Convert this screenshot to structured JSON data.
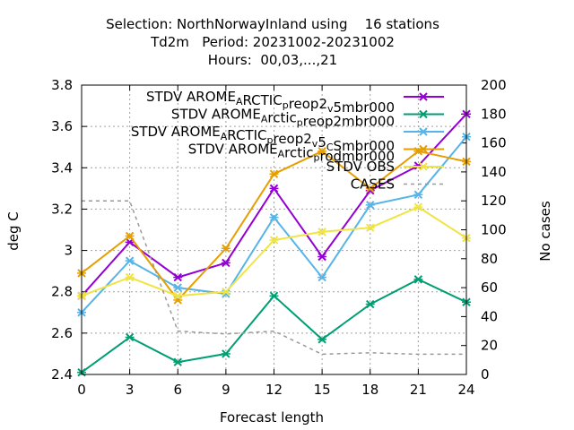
{
  "title_lines": [
    "Selection: NorthNorwayInland using    16 stations",
    "Td2m   Period: 20231002-20231002",
    "Hours:  00,03,...,21"
  ],
  "chart_data": {
    "type": "line",
    "xlabel": "Forecast length",
    "ylabel": "deg C",
    "y2label": "No cases",
    "x": [
      0,
      3,
      6,
      9,
      12,
      15,
      18,
      21,
      24
    ],
    "xlim": [
      0,
      24
    ],
    "ylim": [
      2.4,
      3.8
    ],
    "y2lim": [
      0,
      200
    ],
    "xticks": [
      "0",
      "3",
      "6",
      "9",
      "12",
      "15",
      "18",
      "21",
      "24"
    ],
    "yticks": [
      "2.4",
      "2.6",
      "2.8",
      "3",
      "3.2",
      "3.4",
      "3.6",
      "3.8"
    ],
    "y2ticks": [
      "0",
      "20",
      "40",
      "60",
      "80",
      "100",
      "120",
      "140",
      "160",
      "180",
      "200"
    ],
    "grid": true,
    "legend_position": "top-right",
    "series": [
      {
        "label": [
          [
            "t",
            "STDV AROME"
          ],
          [
            "sub",
            "A"
          ],
          [
            "t",
            "RCTIC"
          ],
          [
            "sub",
            "p"
          ],
          [
            "t",
            "reop2"
          ],
          [
            "sub",
            "v"
          ],
          [
            "t",
            "5mbr000"
          ]
        ],
        "color": "#9400d3",
        "marker": "x",
        "axis": "y1",
        "dashed": false,
        "values": [
          2.78,
          3.04,
          2.87,
          2.94,
          3.3,
          2.97,
          3.29,
          3.41,
          3.66
        ]
      },
      {
        "label": [
          [
            "t",
            "STDV AROME"
          ],
          [
            "sub",
            "A"
          ],
          [
            "t",
            "rctic"
          ],
          [
            "sub",
            "p"
          ],
          [
            "t",
            "reop2mbr000"
          ]
        ],
        "color": "#009e73",
        "marker": "x",
        "axis": "y1",
        "dashed": false,
        "values": [
          2.41,
          2.58,
          2.46,
          2.5,
          2.78,
          2.57,
          2.74,
          2.86,
          2.75
        ]
      },
      {
        "label": [
          [
            "t",
            "STDV AROME"
          ],
          [
            "sub",
            "A"
          ],
          [
            "t",
            "RCTIC"
          ],
          [
            "sub",
            "p"
          ],
          [
            "t",
            "reop2"
          ],
          [
            "sub",
            "v"
          ],
          [
            "t",
            "5"
          ],
          [
            "sub",
            "C"
          ],
          [
            "t",
            "Smbr000"
          ]
        ],
        "color": "#56b4e9",
        "marker": "x",
        "axis": "y1",
        "dashed": false,
        "values": [
          2.7,
          2.95,
          2.82,
          2.79,
          3.16,
          2.87,
          3.22,
          3.27,
          3.55
        ]
      },
      {
        "label": [
          [
            "t",
            "STDV AROME"
          ],
          [
            "sub",
            "A"
          ],
          [
            "t",
            "rctic"
          ],
          [
            "sub",
            "p"
          ],
          [
            "t",
            "rodmbr000"
          ]
        ],
        "color": "#e69f00",
        "marker": "x",
        "axis": "y1",
        "dashed": false,
        "values": [
          2.89,
          3.07,
          2.76,
          3.01,
          3.37,
          3.48,
          3.3,
          3.48,
          3.43
        ]
      },
      {
        "label": [
          [
            "t",
            "STDV OBS"
          ]
        ],
        "color": "#f0e442",
        "marker": "x",
        "axis": "y1",
        "dashed": false,
        "values": [
          2.78,
          2.87,
          2.78,
          2.8,
          3.05,
          3.09,
          3.11,
          3.21,
          3.06
        ]
      },
      {
        "label": [
          [
            "t",
            "CASES"
          ]
        ],
        "color": "#999999",
        "marker": "none",
        "axis": "y2",
        "dashed": true,
        "values": [
          120,
          120,
          30,
          28,
          30,
          14,
          15,
          14,
          14
        ]
      }
    ]
  }
}
